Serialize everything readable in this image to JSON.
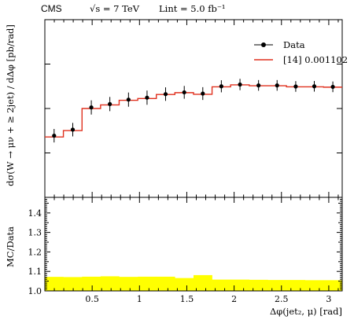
{
  "chart_data": [
    {
      "type": "line",
      "header": {
        "experiment": "CMS",
        "energy": "√s = 7 TeV",
        "luminosity": "Lint = 5.0 fb⁻¹"
      },
      "ylabel": "dσ(W → μν + ≥ 2jet) / dΔφ [pb/rad]",
      "ylim": [
        0,
        1
      ],
      "y_ticks_labeled": false,
      "legend": {
        "placement": "top-right",
        "entries": [
          "Data",
          "[14] 0.001102"
        ]
      },
      "bin_edges": [
        0,
        0.196,
        0.393,
        0.589,
        0.785,
        0.982,
        1.178,
        1.374,
        1.571,
        1.767,
        1.963,
        2.16,
        2.356,
        2.553,
        2.749,
        2.945,
        3.142
      ],
      "series": [
        {
          "name": "Data",
          "style": "points-with-errorbars",
          "color": "#000000",
          "x": [
            0.098,
            0.295,
            0.491,
            0.687,
            0.884,
            1.08,
            1.276,
            1.473,
            1.669,
            1.865,
            2.062,
            2.258,
            2.454,
            2.651,
            2.847,
            3.043
          ],
          "values": [
            0.347,
            0.381,
            0.506,
            0.525,
            0.55,
            0.561,
            0.581,
            0.591,
            0.584,
            0.625,
            0.635,
            0.63,
            0.63,
            0.624,
            0.625,
            0.622
          ],
          "errors": [
            0.038,
            0.038,
            0.04,
            0.04,
            0.04,
            0.04,
            0.038,
            0.036,
            0.036,
            0.034,
            0.032,
            0.03,
            0.03,
            0.03,
            0.03,
            0.03
          ]
        },
        {
          "name": "[14] 0.001102",
          "style": "step-histogram",
          "color": "#e0301e",
          "values": [
            0.34,
            0.376,
            0.5,
            0.52,
            0.546,
            0.556,
            0.579,
            0.589,
            0.58,
            0.622,
            0.633,
            0.628,
            0.628,
            0.622,
            0.622,
            0.62
          ]
        }
      ]
    },
    {
      "type": "area",
      "ylabel": "MC/Data",
      "xlabel": "Δφ(jet₂, μ) [rad]",
      "xlim": [
        0,
        3.142
      ],
      "ylim": [
        1.0,
        1.48
      ],
      "x_ticks": [
        0.5,
        1,
        1.5,
        2,
        2.5,
        3
      ],
      "x_tick_labels": [
        "0.5",
        "1",
        "1.5",
        "2",
        "2.5",
        "3"
      ],
      "y_ticks": [
        1.0,
        1.1,
        1.2,
        1.3,
        1.4
      ],
      "y_tick_labels": [
        "1.0",
        "1.1",
        "1.2",
        "1.3",
        "1.4"
      ],
      "band_color": "#ffff00",
      "band_lower": 1.0,
      "band_upper": [
        1.072,
        1.071,
        1.073,
        1.075,
        1.072,
        1.073,
        1.073,
        1.066,
        1.081,
        1.058,
        1.058,
        1.057,
        1.056,
        1.056,
        1.055,
        1.055
      ]
    }
  ]
}
